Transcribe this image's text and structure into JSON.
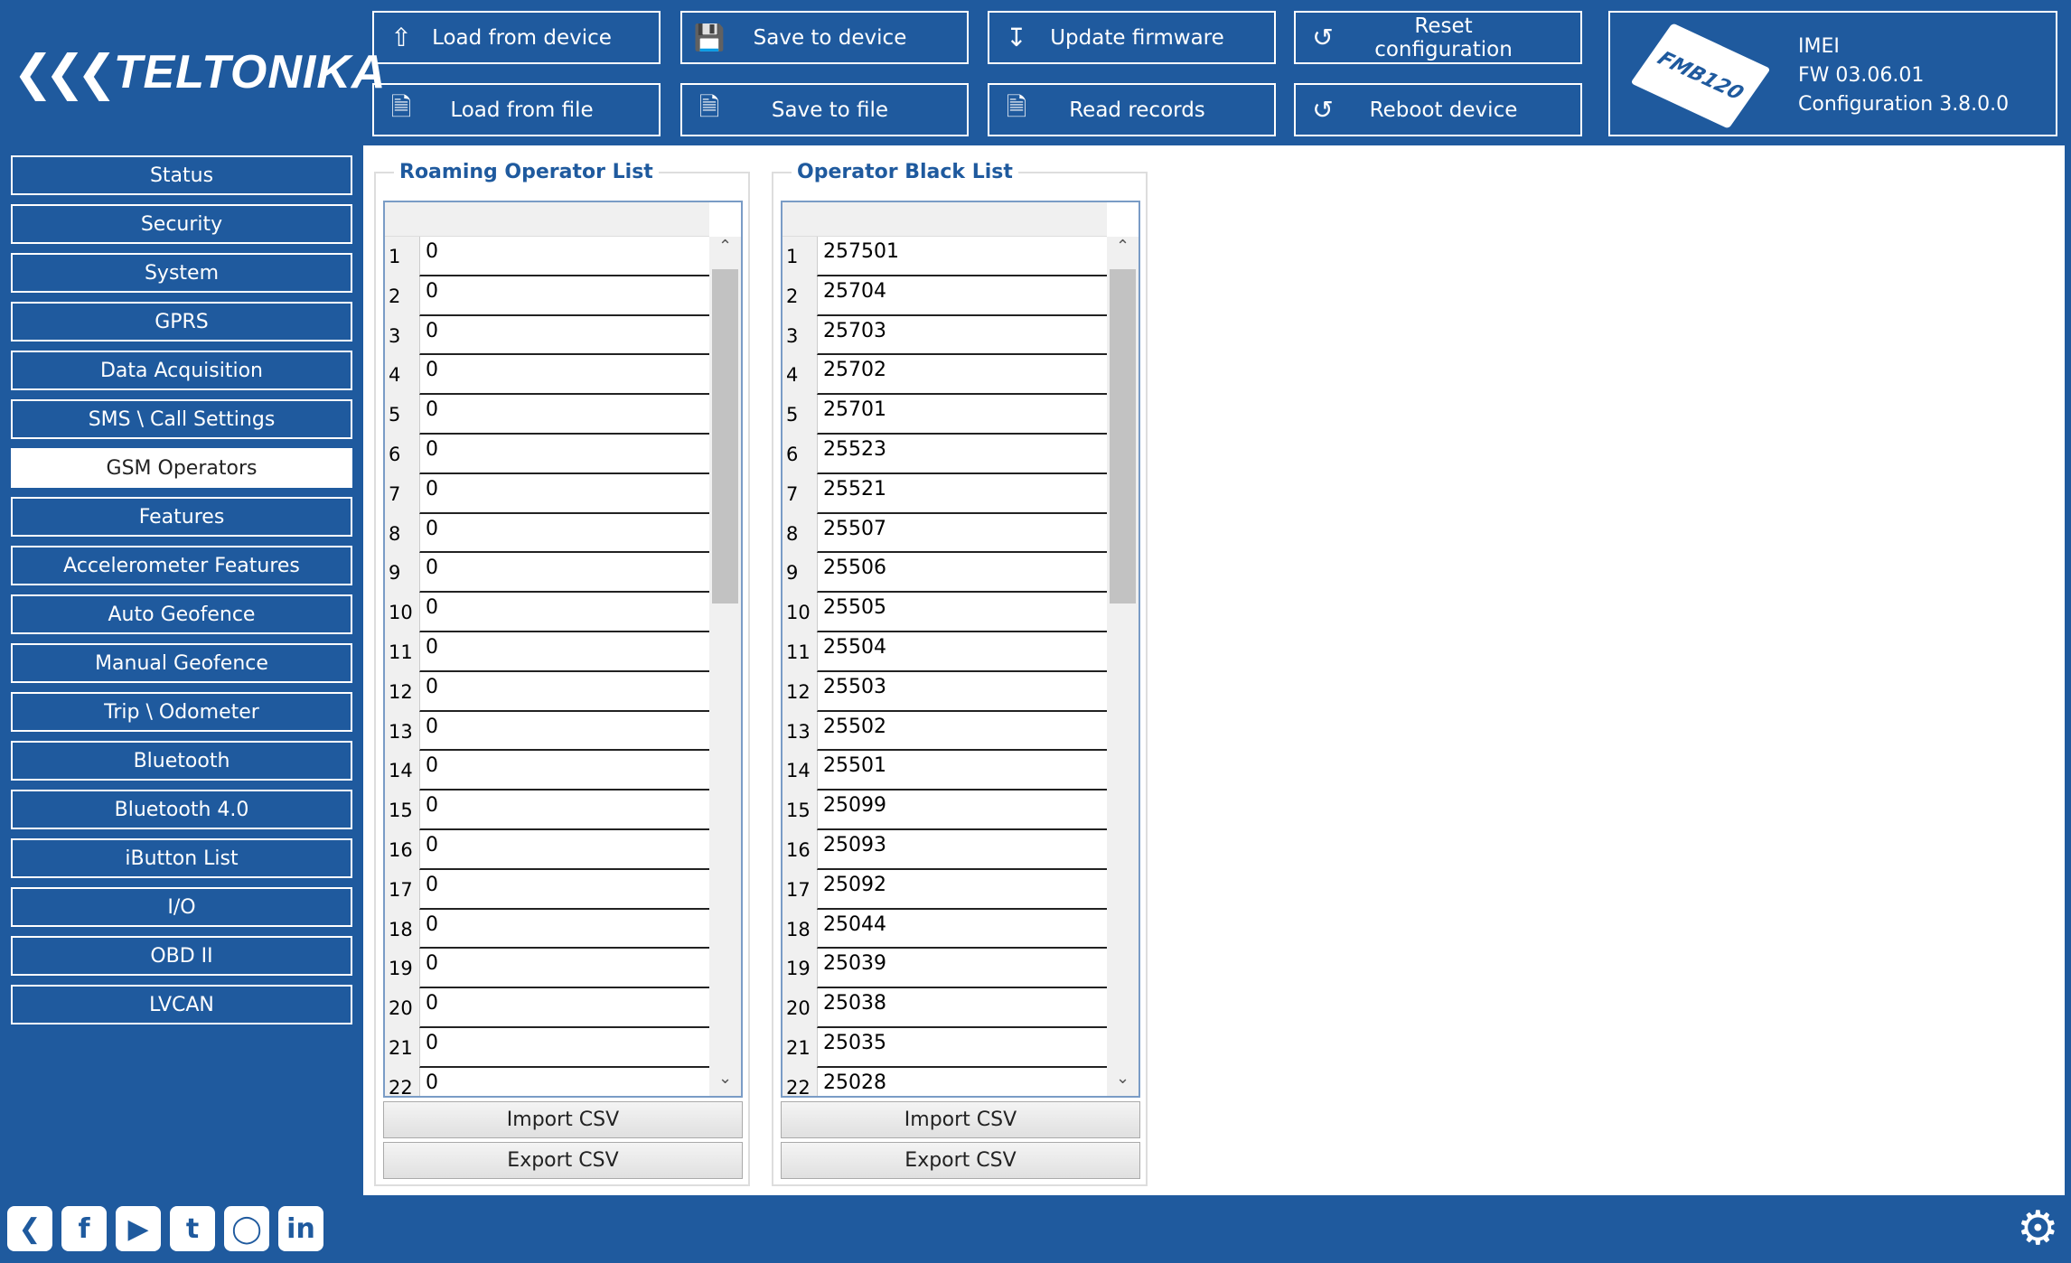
{
  "brand": {
    "logo_text": "TELTONIKA"
  },
  "toolbar": [
    {
      "label": "Load from device",
      "icon": "upload-icon"
    },
    {
      "label": "Save to device",
      "icon": "floppy-icon"
    },
    {
      "label": "Update firmware",
      "icon": "firmware-icon"
    },
    {
      "label": "Reset configuration",
      "icon": "reset-icon"
    },
    {
      "label": "Load from file",
      "icon": "file-load-icon"
    },
    {
      "label": "Save to file",
      "icon": "file-save-icon"
    },
    {
      "label": "Read records",
      "icon": "records-icon"
    },
    {
      "label": "Reboot device",
      "icon": "reboot-icon"
    }
  ],
  "device": {
    "model": "FMB120",
    "imei_label": "IMEI",
    "fw": "FW  03.06.01",
    "configuration": "Configuration  3.8.0.0"
  },
  "sidebar": {
    "active": "GSM Operators",
    "items": [
      "Status",
      "Security",
      "System",
      "GPRS",
      "Data Acquisition",
      "SMS \\ Call Settings",
      "GSM Operators",
      "Features",
      "Accelerometer Features",
      "Auto Geofence",
      "Manual Geofence",
      "Trip \\ Odometer",
      "Bluetooth",
      "Bluetooth 4.0",
      "iButton List",
      "I/O",
      "OBD II",
      "LVCAN"
    ]
  },
  "roaming": {
    "title": "Roaming Operator List",
    "rows": [
      "0",
      "0",
      "0",
      "0",
      "0",
      "0",
      "0",
      "0",
      "0",
      "0",
      "0",
      "0",
      "0",
      "0",
      "0",
      "0",
      "0",
      "0",
      "0",
      "0",
      "0",
      "0"
    ],
    "import_label": "Import CSV",
    "export_label": "Export CSV"
  },
  "blacklist": {
    "title": "Operator Black List",
    "rows": [
      "257501",
      "25704",
      "25703",
      "25702",
      "25701",
      "25523",
      "25521",
      "25507",
      "25506",
      "25505",
      "25504",
      "25503",
      "25502",
      "25501",
      "25099",
      "25093",
      "25092",
      "25044",
      "25039",
      "25038",
      "25035",
      "25028"
    ],
    "import_label": "Import CSV",
    "export_label": "Export CSV"
  },
  "footer": {
    "icons": [
      "teltonika-icon",
      "facebook-icon",
      "youtube-icon",
      "twitter-icon",
      "instagram-icon",
      "linkedin-icon"
    ],
    "settings_icon": "gear-icon"
  },
  "colors": {
    "brand": "#1f5a9e",
    "title": "#1f5a9e"
  }
}
